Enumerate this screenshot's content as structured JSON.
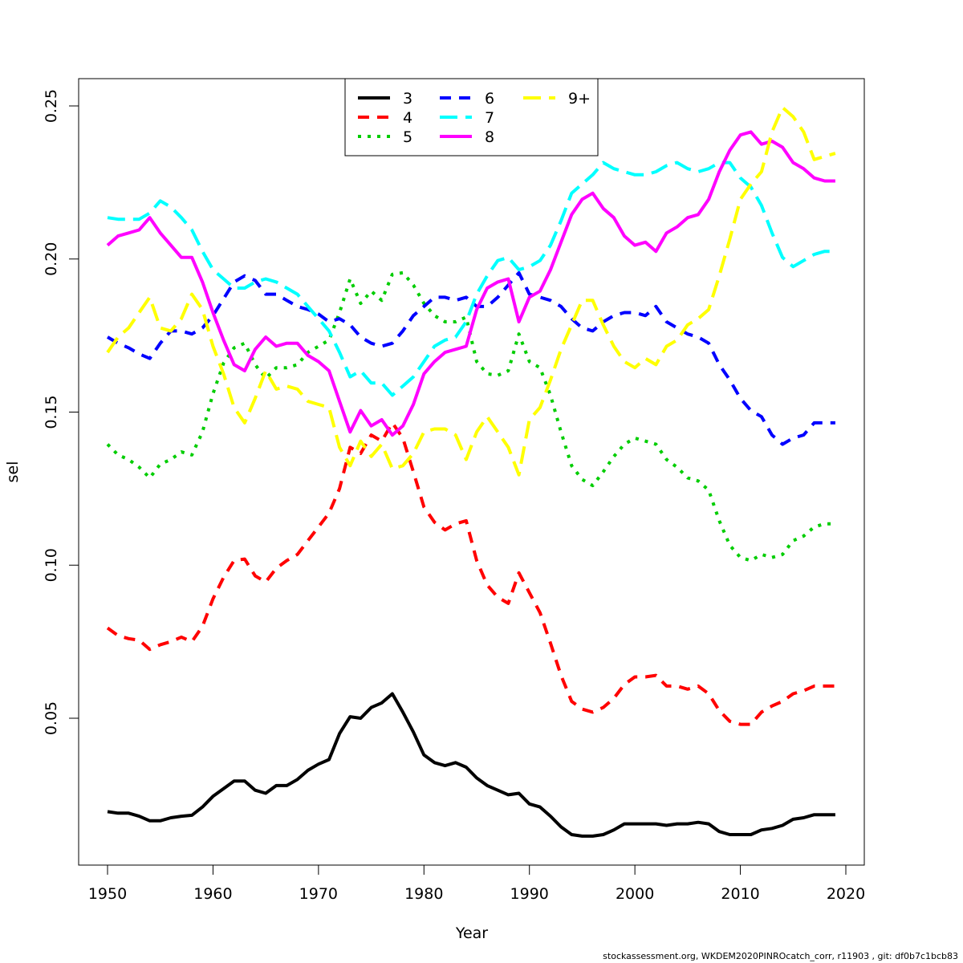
{
  "chart_data": {
    "type": "line",
    "title": "",
    "xlabel": "Year",
    "ylabel": "sel",
    "xlim": [
      1950,
      2020
    ],
    "ylim": [
      0.01,
      0.26
    ],
    "x_ticks": [
      1950,
      1960,
      1970,
      1980,
      1990,
      2000,
      2010,
      2020
    ],
    "y_ticks": [
      0.05,
      0.1,
      0.15,
      0.2,
      0.25
    ],
    "y_tick_labels": [
      "0.05",
      "0.10",
      "0.15",
      "0.20",
      "0.25"
    ],
    "grid": false,
    "legend_position": "top-center",
    "x": [
      1950,
      1951,
      1952,
      1953,
      1954,
      1955,
      1956,
      1957,
      1958,
      1959,
      1960,
      1961,
      1962,
      1963,
      1964,
      1965,
      1966,
      1967,
      1968,
      1969,
      1970,
      1971,
      1972,
      1973,
      1974,
      1975,
      1976,
      1977,
      1978,
      1979,
      1980,
      1981,
      1982,
      1983,
      1984,
      1985,
      1986,
      1987,
      1988,
      1989,
      1990,
      1991,
      1992,
      1993,
      1994,
      1995,
      1996,
      1997,
      1998,
      1999,
      2000,
      2001,
      2002,
      2003,
      2004,
      2005,
      2006,
      2007,
      2008,
      2009,
      2010,
      2011,
      2012,
      2013,
      2014,
      2015,
      2016,
      2017,
      2018,
      2019
    ],
    "series": [
      {
        "name": "3",
        "color": "#000000",
        "dash": "solid",
        "values": [
          0.0195,
          0.019,
          0.019,
          0.018,
          0.0165,
          0.0165,
          0.0175,
          0.018,
          0.0183,
          0.021,
          0.0245,
          0.027,
          0.0295,
          0.0295,
          0.0265,
          0.0255,
          0.028,
          0.028,
          0.03,
          0.033,
          0.035,
          0.0365,
          0.045,
          0.0505,
          0.05,
          0.0535,
          0.055,
          0.058,
          0.052,
          0.0455,
          0.038,
          0.0355,
          0.0345,
          0.0355,
          0.034,
          0.0305,
          0.028,
          0.0265,
          0.025,
          0.0255,
          0.022,
          0.021,
          0.018,
          0.0145,
          0.012,
          0.0115,
          0.0115,
          0.012,
          0.0135,
          0.0155,
          0.0155,
          0.0155,
          0.0155,
          0.015,
          0.0155,
          0.0155,
          0.016,
          0.0155,
          0.013,
          0.012,
          0.012,
          0.012,
          0.0135,
          0.014,
          0.015,
          0.017,
          0.0175,
          0.0185,
          0.0185,
          0.0185
        ]
      },
      {
        "name": "4",
        "color": "#ff0000",
        "dash": "dashed",
        "values": [
          0.0795,
          0.077,
          0.076,
          0.0755,
          0.0725,
          0.074,
          0.075,
          0.0765,
          0.075,
          0.08,
          0.089,
          0.096,
          0.1015,
          0.102,
          0.0965,
          0.0945,
          0.099,
          0.1015,
          0.1035,
          0.108,
          0.1125,
          0.117,
          0.125,
          0.1385,
          0.1365,
          0.1425,
          0.1405,
          0.1465,
          0.1415,
          0.1305,
          0.119,
          0.114,
          0.1115,
          0.1135,
          0.1145,
          0.1015,
          0.0935,
          0.0895,
          0.0875,
          0.0975,
          0.091,
          0.0845,
          0.0745,
          0.064,
          0.0555,
          0.053,
          0.052,
          0.0535,
          0.0565,
          0.061,
          0.0635,
          0.0635,
          0.064,
          0.0605,
          0.0605,
          0.0595,
          0.0605,
          0.058,
          0.0525,
          0.049,
          0.048,
          0.048,
          0.052,
          0.054,
          0.0555,
          0.058,
          0.059,
          0.0605,
          0.0605,
          0.0605
        ]
      },
      {
        "name": "5",
        "color": "#00cd00",
        "dash": "dotted",
        "values": [
          0.1395,
          0.136,
          0.1345,
          0.132,
          0.1285,
          0.133,
          0.1345,
          0.137,
          0.136,
          0.1435,
          0.156,
          0.166,
          0.171,
          0.1725,
          0.1655,
          0.161,
          0.1645,
          0.1645,
          0.1655,
          0.1695,
          0.1715,
          0.1735,
          0.1825,
          0.1935,
          0.1855,
          0.1895,
          0.1865,
          0.195,
          0.1955,
          0.1915,
          0.1855,
          0.1815,
          0.1795,
          0.1795,
          0.181,
          0.1665,
          0.1625,
          0.162,
          0.1635,
          0.1755,
          0.1665,
          0.1645,
          0.1555,
          0.1435,
          0.1325,
          0.128,
          0.126,
          0.1305,
          0.1355,
          0.1395,
          0.1415,
          0.1405,
          0.1395,
          0.1345,
          0.132,
          0.1285,
          0.1275,
          0.1245,
          0.1145,
          0.1065,
          0.1025,
          0.1015,
          0.1035,
          0.1025,
          0.1035,
          0.108,
          0.1095,
          0.1125,
          0.1135,
          0.1135
        ]
      },
      {
        "name": "6",
        "color": "#0000ff",
        "dash": "dashed",
        "values": [
          0.1745,
          0.1725,
          0.171,
          0.169,
          0.1675,
          0.1725,
          0.1765,
          0.1765,
          0.1755,
          0.1775,
          0.1815,
          0.187,
          0.1925,
          0.1945,
          0.193,
          0.1885,
          0.1885,
          0.1865,
          0.1845,
          0.1835,
          0.182,
          0.1795,
          0.1805,
          0.1785,
          0.1745,
          0.1725,
          0.1715,
          0.1725,
          0.1765,
          0.1815,
          0.1845,
          0.1875,
          0.1875,
          0.1865,
          0.1875,
          0.1845,
          0.1845,
          0.1875,
          0.1915,
          0.1955,
          0.1885,
          0.1875,
          0.1865,
          0.1845,
          0.1805,
          0.1775,
          0.1765,
          0.1795,
          0.1815,
          0.1825,
          0.1825,
          0.1815,
          0.1845,
          0.1795,
          0.1775,
          0.1755,
          0.1745,
          0.1725,
          0.1655,
          0.1605,
          0.1545,
          0.1505,
          0.1485,
          0.1425,
          0.1395,
          0.1415,
          0.1425,
          0.1465,
          0.1465,
          0.1465
        ]
      },
      {
        "name": "7",
        "color": "#00ffff",
        "dash": "longdash",
        "values": [
          0.2135,
          0.213,
          0.213,
          0.213,
          0.215,
          0.219,
          0.217,
          0.2135,
          0.2095,
          0.2025,
          0.1965,
          0.1935,
          0.1905,
          0.1905,
          0.1925,
          0.1935,
          0.1925,
          0.1905,
          0.1885,
          0.1845,
          0.1805,
          0.1765,
          0.1695,
          0.1615,
          0.1635,
          0.1595,
          0.1595,
          0.1555,
          0.1585,
          0.1615,
          0.1665,
          0.1715,
          0.1735,
          0.1745,
          0.1795,
          0.1885,
          0.1945,
          0.1995,
          0.2005,
          0.1965,
          0.1975,
          0.1995,
          0.2045,
          0.2125,
          0.2215,
          0.2245,
          0.2275,
          0.2315,
          0.2295,
          0.2285,
          0.2275,
          0.2275,
          0.2285,
          0.2305,
          0.2315,
          0.2295,
          0.2285,
          0.2295,
          0.2315,
          0.2315,
          0.2265,
          0.2235,
          0.2175,
          0.2085,
          0.2005,
          0.1975,
          0.1995,
          0.2015,
          0.2025,
          0.2025
        ]
      },
      {
        "name": "8",
        "color": "#ff00ff",
        "dash": "solid",
        "values": [
          0.2045,
          0.2075,
          0.2085,
          0.2095,
          0.2135,
          0.2085,
          0.2045,
          0.2005,
          0.2005,
          0.1925,
          0.1825,
          0.1735,
          0.1655,
          0.1635,
          0.1705,
          0.1745,
          0.1715,
          0.1725,
          0.1725,
          0.1685,
          0.1665,
          0.1635,
          0.1535,
          0.1435,
          0.1505,
          0.1455,
          0.1475,
          0.1425,
          0.1455,
          0.1525,
          0.1625,
          0.1665,
          0.1695,
          0.1705,
          0.1715,
          0.1835,
          0.1905,
          0.1925,
          0.1935,
          0.1795,
          0.1875,
          0.1895,
          0.1965,
          0.2055,
          0.2145,
          0.2195,
          0.2215,
          0.2165,
          0.2135,
          0.2075,
          0.2045,
          0.2055,
          0.2025,
          0.2085,
          0.2105,
          0.2135,
          0.2145,
          0.2195,
          0.2285,
          0.2355,
          0.2405,
          0.2415,
          0.2375,
          0.2385,
          0.2365,
          0.2315,
          0.2295,
          0.2265,
          0.2255,
          0.2255
        ]
      },
      {
        "name": "9+",
        "color": "#ffff00",
        "dash": "longdash",
        "values": [
          0.1695,
          0.1745,
          0.1775,
          0.1825,
          0.1875,
          0.1775,
          0.1765,
          0.1805,
          0.1885,
          0.1835,
          0.1715,
          0.1625,
          0.1515,
          0.1465,
          0.1545,
          0.1635,
          0.1575,
          0.1585,
          0.1575,
          0.1535,
          0.1525,
          0.1515,
          0.1385,
          0.1325,
          0.1405,
          0.1355,
          0.1395,
          0.1315,
          0.1325,
          0.1365,
          0.1435,
          0.1445,
          0.1445,
          0.1425,
          0.1345,
          0.1435,
          0.1485,
          0.1435,
          0.1385,
          0.1295,
          0.1475,
          0.1515,
          0.1605,
          0.1705,
          0.1785,
          0.1865,
          0.1865,
          0.1785,
          0.1715,
          0.1665,
          0.1645,
          0.1675,
          0.1655,
          0.1715,
          0.1735,
          0.1785,
          0.1805,
          0.1835,
          0.1945,
          0.2065,
          0.2195,
          0.2245,
          0.2285,
          0.2415,
          0.2495,
          0.2465,
          0.2415,
          0.2325,
          0.2335,
          0.2345
        ]
      }
    ]
  },
  "footer": "stockassessment.org, WKDEM2020PINROcatch_corr, r11903 , git: df0b7c1bcb83"
}
